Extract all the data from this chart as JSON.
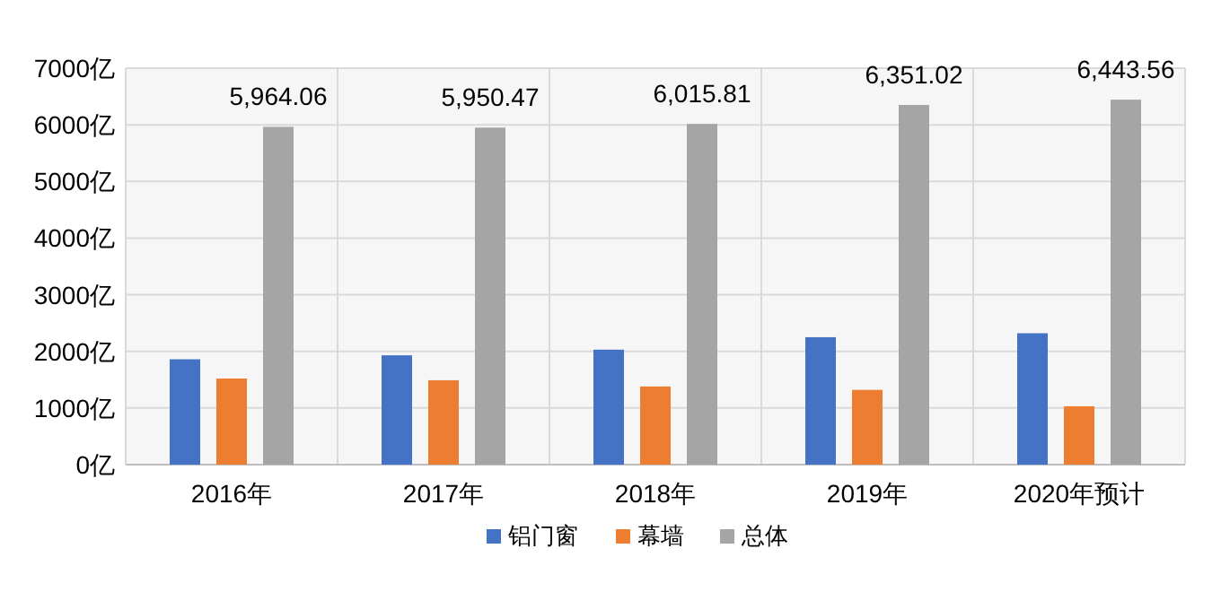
{
  "chart_data": {
    "type": "bar",
    "categories": [
      "2016年",
      "2017年",
      "2018年",
      "2019年",
      "2020年预计"
    ],
    "series": [
      {
        "name": "铝门窗",
        "color": "#4472c4",
        "values": [
          1860,
          1930,
          2030,
          2250,
          2320
        ]
      },
      {
        "name": "幕墙",
        "color": "#ed7d31",
        "values": [
          1520,
          1490,
          1380,
          1320,
          1030
        ]
      },
      {
        "name": "总体",
        "color": "#a5a5a5",
        "values": [
          5964.06,
          5950.47,
          6015.81,
          6351.02,
          6443.56
        ],
        "value_labels": [
          "5,964.06",
          "5,950.47",
          "6,015.81",
          "6,351.02",
          "6,443.56"
        ]
      }
    ],
    "ylim": [
      0,
      7000
    ],
    "yticks": [
      {
        "value": 0,
        "label": "0亿"
      },
      {
        "value": 1000,
        "label": "1000亿"
      },
      {
        "value": 2000,
        "label": "2000亿"
      },
      {
        "value": 3000,
        "label": "3000亿"
      },
      {
        "value": 4000,
        "label": "4000亿"
      },
      {
        "value": 5000,
        "label": "5000亿"
      },
      {
        "value": 6000,
        "label": "6000亿"
      },
      {
        "value": 7000,
        "label": "7000亿"
      }
    ],
    "grid": true,
    "legend": "bottom"
  }
}
